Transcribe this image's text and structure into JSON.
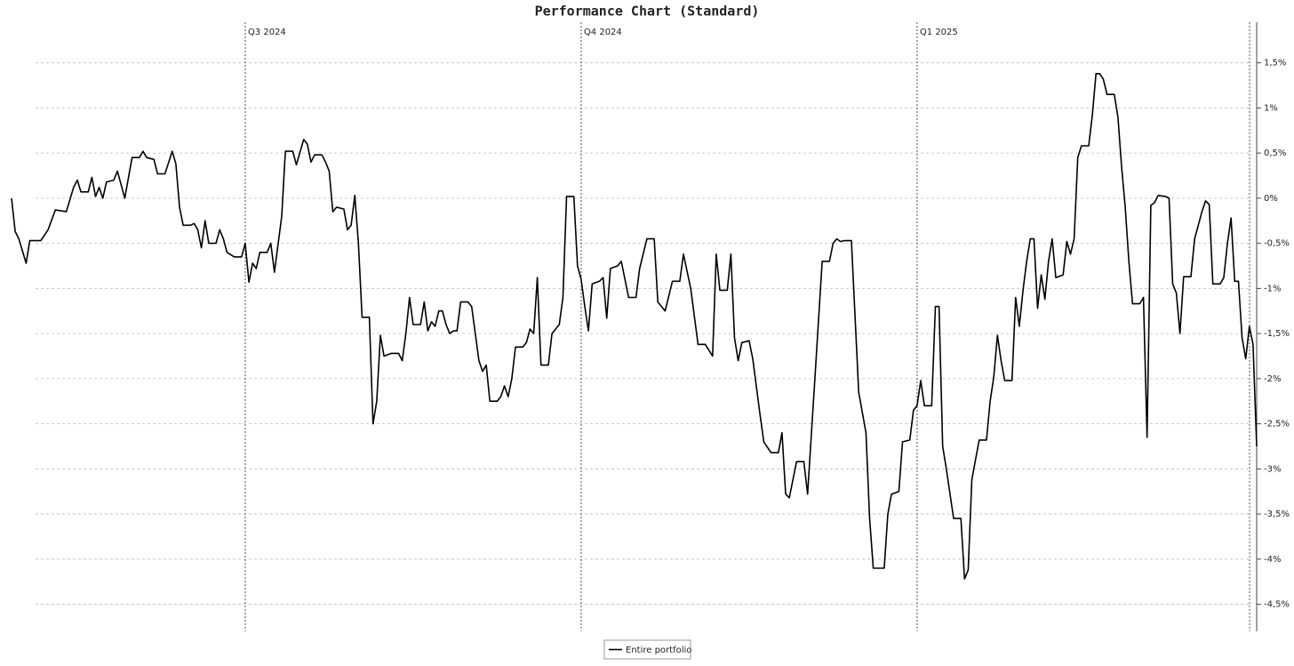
{
  "chart_data": {
    "type": "line",
    "title": "Performance Chart (Standard)",
    "x": [
      0,
      1,
      2,
      4,
      5,
      8,
      10,
      12,
      15,
      17,
      18,
      19,
      21,
      22,
      23,
      24,
      25,
      26,
      28,
      29,
      31,
      33,
      35,
      36,
      37,
      39,
      40,
      42,
      44,
      45,
      46,
      47,
      49,
      50,
      51,
      52,
      53,
      54,
      56,
      57,
      58,
      59,
      61,
      63,
      64,
      65,
      66,
      67,
      68,
      70,
      71,
      72,
      74,
      75,
      77,
      78,
      80,
      81,
      82,
      83,
      85,
      86,
      87,
      88,
      89,
      91,
      92,
      93,
      94,
      95,
      96,
      98,
      99,
      100,
      101,
      102,
      104,
      106,
      107,
      108,
      109,
      110,
      112,
      113,
      114,
      115,
      116,
      117,
      118,
      119,
      120,
      121,
      122,
      123,
      125,
      126,
      127,
      128,
      129,
      130,
      131,
      133,
      134,
      135,
      136,
      137,
      138,
      140,
      141,
      142,
      143,
      144,
      145,
      147,
      148,
      150,
      151,
      152,
      154,
      155,
      156,
      157,
      158,
      159,
      161,
      162,
      163,
      164,
      166,
      167,
      169,
      171,
      172,
      174,
      176,
      177,
      179,
      181,
      183,
      184,
      186,
      188,
      190,
      192,
      193,
      194,
      196,
      197,
      198,
      199,
      200,
      202,
      203,
      205,
      206,
      208,
      210,
      211,
      212,
      213,
      215,
      217,
      218,
      220,
      222,
      224,
      225,
      226,
      227,
      228,
      230,
      232,
      234,
      235,
      236,
      239,
      240,
      241,
      243,
      244,
      246,
      247,
      248,
      249,
      250,
      252,
      253,
      254,
      255,
      256,
      258,
      260,
      261,
      262,
      263,
      264,
      265,
      267,
      268,
      269,
      270,
      271,
      272,
      274,
      275,
      276,
      277,
      278,
      279,
      280,
      281,
      282,
      283,
      284,
      285,
      286,
      288,
      289,
      290,
      291,
      292,
      293,
      295,
      296,
      297,
      298,
      299,
      300,
      302,
      303,
      304,
      305,
      306,
      307,
      309,
      310,
      311,
      312,
      313,
      314,
      316,
      317,
      318,
      319,
      320,
      321,
      323,
      324,
      326,
      327,
      328,
      329,
      331,
      332,
      333,
      334,
      335,
      336,
      337,
      338,
      339,
      340,
      341
    ],
    "series": [
      {
        "name": "Entire portfolio",
        "color": "#000000",
        "values": [
          0,
          -0.37,
          -0.45,
          -0.72,
          -0.47,
          -0.47,
          -0.35,
          -0.13,
          -0.15,
          0.12,
          0.2,
          0.07,
          0.07,
          0.23,
          0.02,
          0.12,
          0.0,
          0.18,
          0.2,
          0.3,
          0.0,
          0.45,
          0.45,
          0.52,
          0.45,
          0.43,
          0.27,
          0.27,
          0.52,
          0.38,
          -0.1,
          -0.3,
          -0.3,
          -0.28,
          -0.35,
          -0.55,
          -0.25,
          -0.5,
          -0.5,
          -0.35,
          -0.45,
          -0.6,
          -0.65,
          -0.65,
          -0.5,
          -0.93,
          -0.72,
          -0.78,
          -0.6,
          -0.6,
          -0.5,
          -0.82,
          -0.2,
          0.52,
          0.52,
          0.37,
          0.65,
          0.6,
          0.4,
          0.48,
          0.48,
          0.4,
          0.3,
          -0.15,
          -0.1,
          -0.12,
          -0.35,
          -0.3,
          0.03,
          -0.5,
          -1.32,
          -1.32,
          -2.5,
          -2.25,
          -1.52,
          -1.75,
          -1.72,
          -1.72,
          -1.8,
          -1.5,
          -1.1,
          -1.4,
          -1.4,
          -1.15,
          -1.47,
          -1.37,
          -1.42,
          -1.25,
          -1.25,
          -1.4,
          -1.5,
          -1.47,
          -1.47,
          -1.15,
          -1.15,
          -1.2,
          -1.5,
          -1.8,
          -1.92,
          -1.85,
          -2.25,
          -2.25,
          -2.2,
          -2.08,
          -2.2,
          -2.0,
          -1.65,
          -1.65,
          -1.6,
          -1.45,
          -1.5,
          -0.88,
          -1.85,
          -1.85,
          -1.5,
          -1.4,
          -1.1,
          0.02,
          0.02,
          -0.75,
          -0.9,
          -1.2,
          -1.47,
          -0.95,
          -0.92,
          -0.88,
          -1.33,
          -0.78,
          -0.75,
          -0.7,
          -1.1,
          -1.1,
          -0.78,
          -0.45,
          -0.45,
          -1.15,
          -1.25,
          -0.92,
          -0.92,
          -0.62,
          -1.0,
          -1.62,
          -1.62,
          -1.75,
          -0.62,
          -1.02,
          -1.02,
          -0.62,
          -1.55,
          -1.8,
          -1.6,
          -1.58,
          -1.78,
          -2.4,
          -2.7,
          -2.82,
          -2.82,
          -2.6,
          -3.28,
          -3.32,
          -2.92,
          -2.92,
          -3.28,
          -2.0,
          -0.7,
          -0.7,
          -0.5,
          -0.45,
          -0.48,
          -0.47,
          -0.47,
          -2.15,
          -2.6,
          -3.55,
          -4.1,
          -4.1,
          -3.5,
          -3.28,
          -3.25,
          -2.7,
          -2.68,
          -2.35,
          -2.3,
          -2.02,
          -2.3,
          -2.3,
          -1.2,
          -1.2,
          -2.75,
          -3.0,
          -3.55,
          -3.55,
          -4.22,
          -4.12,
          -3.12,
          -2.9,
          -2.68,
          -2.68,
          -2.25,
          -1.98,
          -1.52,
          -1.8,
          -2.02,
          -2.02,
          -1.1,
          -1.42,
          -1.02,
          -0.7,
          -0.45,
          -0.45,
          -1.22,
          -0.85,
          -1.12,
          -0.7,
          -0.45,
          -0.88,
          -0.85,
          -0.48,
          -0.62,
          -0.45,
          0.45,
          0.58,
          0.58,
          0.92,
          1.38,
          1.38,
          1.32,
          1.15,
          1.15,
          0.9,
          0.35,
          -0.1,
          -0.7,
          -1.17,
          -1.17,
          -1.1,
          -2.65,
          -0.08,
          -0.05,
          0.03,
          0.02,
          0.0,
          -0.95,
          -1.05,
          -1.5,
          -0.87,
          -0.87,
          -0.45,
          -0.15,
          -0.03,
          -0.07,
          -0.95,
          -0.95,
          -0.88,
          -0.5,
          -0.22,
          -0.92,
          -0.92,
          -1.55,
          -1.78,
          -1.42,
          -1.62,
          -2.75
        ]
      }
    ],
    "xlim": [
      0,
      341
    ],
    "xticks": [
      {
        "value": 64,
        "label": "Q3 2024"
      },
      {
        "value": 156,
        "label": "Q4 2024"
      },
      {
        "value": 248,
        "label": "Q1 2025"
      }
    ],
    "ylim": [
      -4.8,
      1.95
    ],
    "yticks": [
      {
        "value": 1.5,
        "label": "1,5%"
      },
      {
        "value": 1,
        "label": "1%"
      },
      {
        "value": 0.5,
        "label": "0,5%"
      },
      {
        "value": 0,
        "label": "0%"
      },
      {
        "value": -0.5,
        "label": "-0,5%"
      },
      {
        "value": -1,
        "label": "-1%"
      },
      {
        "value": -1.5,
        "label": "-1,5%"
      },
      {
        "value": -2,
        "label": "-2%"
      },
      {
        "value": -2.5,
        "label": "-2,5%"
      },
      {
        "value": -3,
        "label": "-3%"
      },
      {
        "value": -3.5,
        "label": "-3,5%"
      },
      {
        "value": -4,
        "label": "-4%"
      },
      {
        "value": -4.5,
        "label": "-4,5%"
      }
    ],
    "grid": true,
    "legend": "bottom"
  }
}
